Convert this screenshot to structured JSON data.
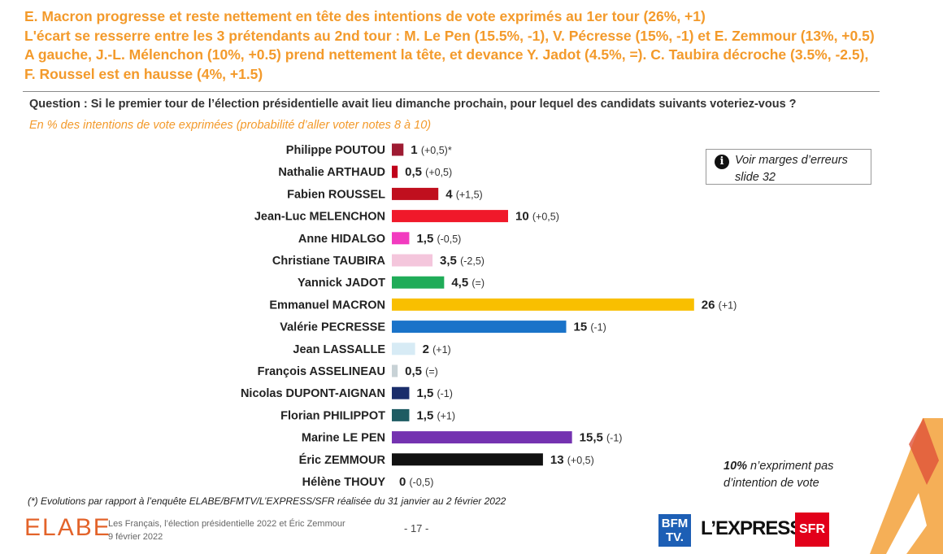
{
  "headline": [
    "E. Macron progresse et reste nettement en tête des intentions de vote exprimés au 1er tour (26%, +1)",
    "L'écart se resserre entre les 3 prétendants au 2nd tour : M. Le Pen (15.5%, -1), V. Pécresse (15%, -1) et E. Zemmour (13%, +0.5)",
    "A gauche, J.-L. Mélenchon (10%, +0.5) prend nettement la tête, et devance Y. Jadot (4.5%, =). C. Taubira décroche (3.5%, -2.5),",
    "F. Roussel est en hausse (4%, +1.5)"
  ],
  "question": "Question : Si le premier tour de l’élection présidentielle avait lieu dimanche prochain, pour lequel des candidats suivants voteriez-vous ?",
  "subquestion": "En % des intentions de vote exprimées (probabilité d’aller voter notes 8 à 10)",
  "note": {
    "icon": "info-icon",
    "line1": "Voir marges d’erreurs",
    "line2": "slide 32"
  },
  "abstention": {
    "bold": "10%",
    "rest": " n’expriment pas",
    "line2": "d’intention de vote"
  },
  "footnote": "(*) Evolutions par rapport à l’enquête ELABE/BFMTV/L’EXPRESS/SFR réalisée du 31 janvier au 2 février 2022",
  "footer": {
    "logo": "ELABE",
    "study_line1": "Les Français, l’élection présidentielle 2022 et Éric Zemmour",
    "study_line2": "9 février 2022",
    "page": "- 17 -",
    "partner1_line1": "BFM",
    "partner1_line2": "TV.",
    "partner2": "L’EXPRESS",
    "partner3": "SFR"
  },
  "chart_data": {
    "type": "bar",
    "orientation": "horizontal",
    "categories": [
      "Philippe POUTOU",
      "Nathalie ARTHAUD",
      "Fabien ROUSSEL",
      "Jean-Luc MELENCHON",
      "Anne HIDALGO",
      "Christiane TAUBIRA",
      "Yannick JADOT",
      "Emmanuel MACRON",
      "Valérie PECRESSE",
      "Jean LASSALLE",
      "François ASSELINEAU",
      "Nicolas DUPONT-AIGNAN",
      "Florian PHILIPPOT",
      "Marine LE PEN",
      "Éric ZEMMOUR",
      "Hélène THOUY"
    ],
    "values": [
      1,
      0.5,
      4,
      10,
      1.5,
      3.5,
      4.5,
      26,
      15,
      2,
      0.5,
      1.5,
      1.5,
      15.5,
      13,
      0
    ],
    "value_labels": [
      "1",
      "0,5",
      "4",
      "10",
      "1,5",
      "3,5",
      "4,5",
      "26",
      "15",
      "2",
      "0,5",
      "1,5",
      "1,5",
      "15,5",
      "13",
      "0"
    ],
    "evolutions": [
      "(+0,5)*",
      "(+0,5)",
      "(+1,5)",
      "(+0,5)",
      "(-0,5)",
      "(-2,5)",
      "(=)",
      "(+1)",
      "(-1)",
      "(+1)",
      "(=)",
      "(-1)",
      "(+1)",
      "(-1)",
      "(+0,5)",
      "(-0,5)"
    ],
    "colors": [
      "#9e1b32",
      "#c0001a",
      "#c00f1e",
      "#f0192a",
      "#f23bbf",
      "#f4c6dc",
      "#1fac58",
      "#f9bf00",
      "#1a73c9",
      "#d7ebf5",
      "#c8d2d6",
      "#1a2d6b",
      "#1f5c63",
      "#7432b0",
      "#111111",
      "#aaaaaa"
    ],
    "xlim": [
      0,
      26
    ]
  }
}
